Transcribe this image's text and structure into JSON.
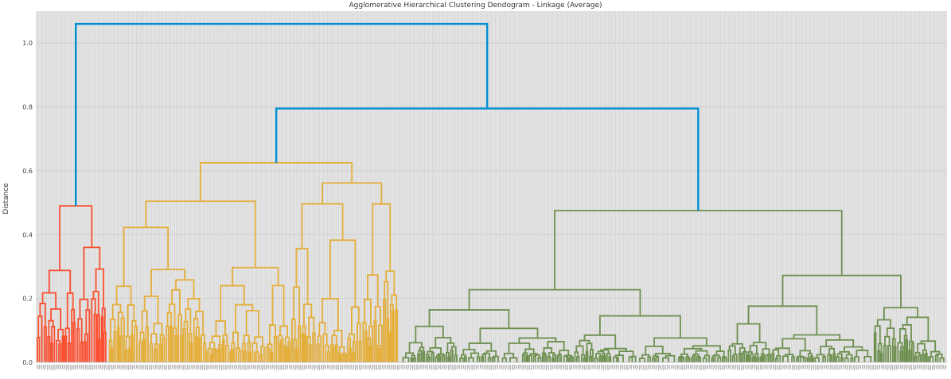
{
  "chart_data": {
    "type": "dendrogram",
    "title": "Agglomerative Hierarchical Clustering Dendogram - Linkage (Average)",
    "xlabel": "",
    "ylabel": "Distance",
    "ylim": [
      0,
      1.1
    ],
    "yticks": [
      0.0,
      0.2,
      0.4,
      0.6,
      0.8,
      1.0
    ],
    "ytick_labels": [
      "0.0",
      "0.2",
      "0.4",
      "0.6",
      "0.8",
      "1.0"
    ],
    "grid": true,
    "background": "#e5e5e5",
    "clusters": [
      {
        "color": "#fc4f30",
        "leaf_fraction": [
          0.0,
          0.079
        ],
        "merge_height": 0.49
      },
      {
        "color": "#e5ae38",
        "leaf_fraction": [
          0.079,
          0.398
        ],
        "merge_height": 0.625
      },
      {
        "color": "#6d904f",
        "leaf_fraction": [
          0.398,
          1.0
        ],
        "merge_height": 0.475
      }
    ],
    "top_links": [
      {
        "color": "#008fd5",
        "height": 0.795,
        "joins": [
          "orange",
          "green"
        ]
      },
      {
        "color": "#008fd5",
        "height": 1.06,
        "joins": [
          "red",
          "orange+green"
        ]
      }
    ],
    "x_tick_labels": "dense leaf indices (unreadable)"
  }
}
